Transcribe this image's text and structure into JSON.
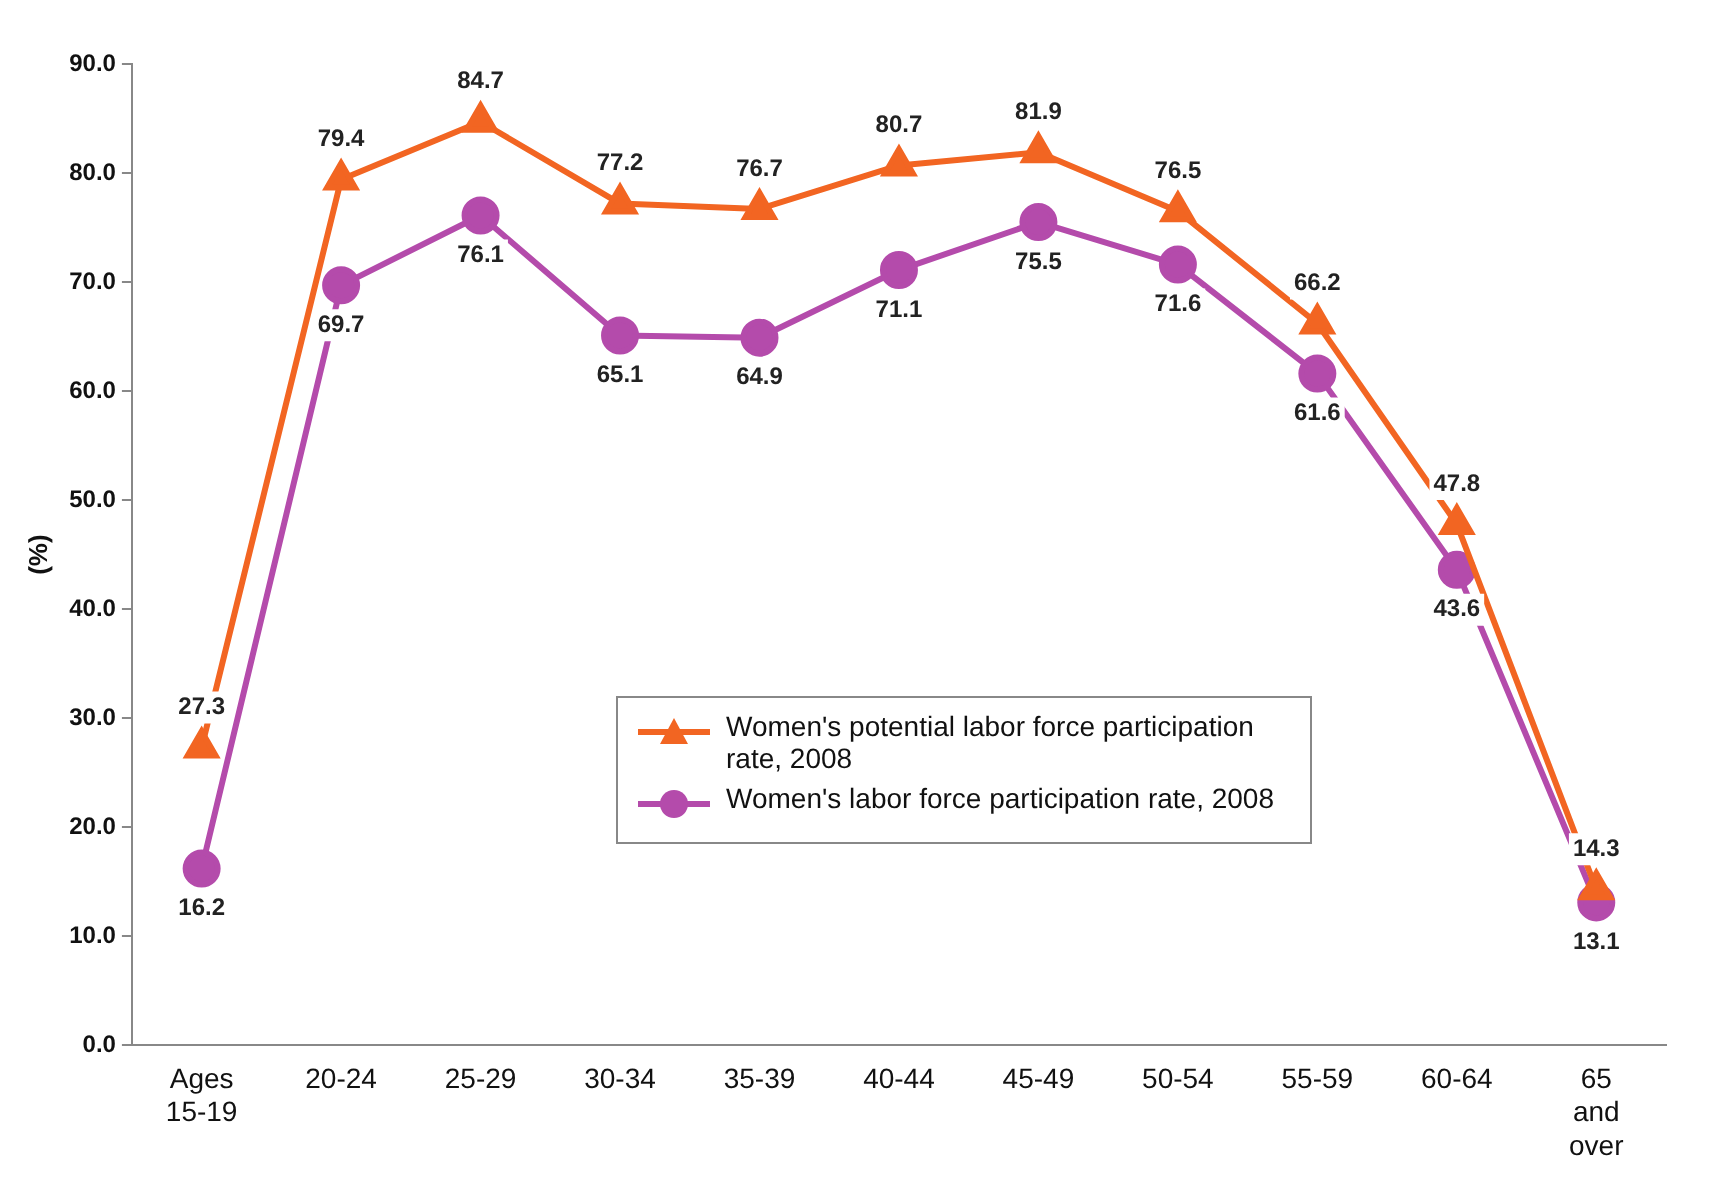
{
  "chart_data": {
    "type": "line",
    "ylabel": "(%)",
    "categories": [
      "Ages 15-19",
      "20-24",
      "25-29",
      "30-34",
      "35-39",
      "40-44",
      "45-49",
      "50-54",
      "55-59",
      "60-64",
      "65 and over"
    ],
    "series": [
      {
        "name": "Women's potential labor force participation rate, 2008",
        "color": "#f26522",
        "marker": "triangle",
        "values": [
          27.3,
          79.4,
          84.7,
          77.2,
          76.7,
          80.7,
          81.9,
          76.5,
          66.2,
          47.8,
          14.3
        ]
      },
      {
        "name": "Women's labor force participation rate, 2008",
        "color": "#b44bab",
        "marker": "circle",
        "values": [
          16.2,
          69.7,
          76.1,
          65.1,
          64.9,
          71.1,
          75.5,
          71.6,
          61.6,
          43.6,
          13.1
        ]
      }
    ],
    "ylim": [
      0,
      90
    ],
    "yticks": [
      {
        "value": 0,
        "label": "0.0"
      },
      {
        "value": 10,
        "label": "10.0"
      },
      {
        "value": 20,
        "label": "20.0"
      },
      {
        "value": 30,
        "label": "30.0"
      },
      {
        "value": 40,
        "label": "40.0"
      },
      {
        "value": 50,
        "label": "50.0"
      },
      {
        "value": 60,
        "label": "60.0"
      },
      {
        "value": 70,
        "label": "70.0"
      },
      {
        "value": 80,
        "label": "80.0"
      },
      {
        "value": 90,
        "label": "90.0"
      }
    ],
    "grid": false,
    "legend": "bottom",
    "data_labels": true,
    "line_style": "solid"
  }
}
